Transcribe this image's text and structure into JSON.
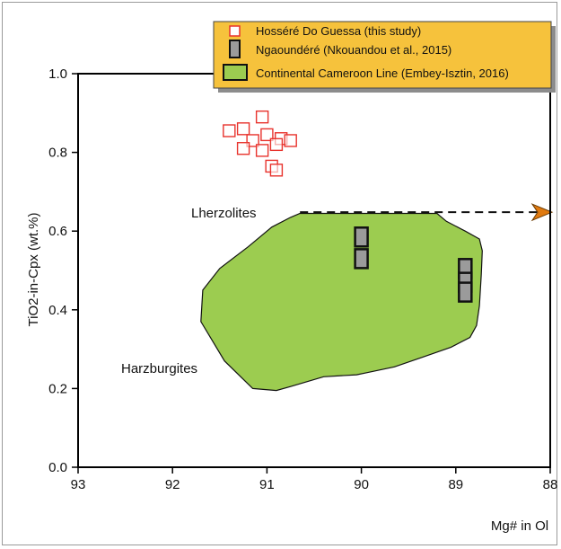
{
  "chart_data": {
    "type": "scatter",
    "xlabel": "Mg# in Ol",
    "ylabel": "TiO2-in-Cpx (wt.%)",
    "xlim": [
      93,
      88
    ],
    "ylim": [
      0,
      1.0
    ],
    "x_reversed": true,
    "x_ticks": [
      "93",
      "92",
      "91",
      "90",
      "89",
      "88"
    ],
    "x_tick_values": [
      93,
      92,
      91,
      90,
      89,
      88
    ],
    "y_ticks": [
      "0.0",
      "0.2",
      "0.4",
      "0.6",
      "0.8",
      "1.0"
    ],
    "y_tick_values": [
      0,
      0.2,
      0.4,
      0.6,
      0.8,
      1.0
    ],
    "grid": false,
    "legend_position": "top-right",
    "legend": [
      {
        "label": "Hosséré Do Guessa (this study)",
        "marker": "open-square",
        "color": "#e8332d"
      },
      {
        "label": "Ngaoundéré (Nkouandou et al., 2015)",
        "marker": "gray-bar",
        "color": "#9b9b9b"
      },
      {
        "label": "Continental Cameroon Line (Embey-Isztin, 2016)",
        "marker": "green-field",
        "color": "#9ccc50"
      }
    ],
    "legend_bg": "#f6c23c",
    "annotations": [
      "Lherzolites",
      "Harzburgites"
    ],
    "series": [
      {
        "name": "Hosséré Do Guessa (this study)",
        "marker": "open-square",
        "color": "#e8332d",
        "points": [
          {
            "x": 91.05,
            "y": 0.89
          },
          {
            "x": 91.4,
            "y": 0.855
          },
          {
            "x": 91.25,
            "y": 0.86
          },
          {
            "x": 91.0,
            "y": 0.845
          },
          {
            "x": 90.85,
            "y": 0.835
          },
          {
            "x": 90.75,
            "y": 0.83
          },
          {
            "x": 91.15,
            "y": 0.83
          },
          {
            "x": 90.9,
            "y": 0.82
          },
          {
            "x": 91.25,
            "y": 0.81
          },
          {
            "x": 91.05,
            "y": 0.805
          },
          {
            "x": 90.95,
            "y": 0.765
          },
          {
            "x": 90.9,
            "y": 0.755
          }
        ]
      },
      {
        "name": "Ngaoundéré (Nkouandou et al., 2015)",
        "marker": "gray-bar",
        "color": "#9b9b9b",
        "points": [
          {
            "x": 90.0,
            "y": 0.585
          },
          {
            "x": 90.0,
            "y": 0.53
          },
          {
            "x": 88.9,
            "y": 0.505
          },
          {
            "x": 88.9,
            "y": 0.47
          },
          {
            "x": 88.9,
            "y": 0.445
          }
        ]
      },
      {
        "name": "Continental Cameroon Line (Embey-Isztin, 2016)",
        "type": "area",
        "color": "#9ccc50",
        "outline": [
          [
            90.65,
            0.645
          ],
          [
            89.2,
            0.645
          ],
          [
            89.1,
            0.625
          ],
          [
            88.9,
            0.6
          ],
          [
            88.75,
            0.58
          ],
          [
            88.72,
            0.55
          ],
          [
            88.73,
            0.49
          ],
          [
            88.75,
            0.41
          ],
          [
            88.78,
            0.36
          ],
          [
            88.85,
            0.33
          ],
          [
            89.05,
            0.305
          ],
          [
            89.35,
            0.28
          ],
          [
            89.65,
            0.255
          ],
          [
            89.95,
            0.24
          ],
          [
            90.05,
            0.235
          ],
          [
            90.4,
            0.23
          ],
          [
            90.75,
            0.205
          ],
          [
            90.9,
            0.195
          ],
          [
            91.15,
            0.2
          ],
          [
            91.45,
            0.27
          ],
          [
            91.7,
            0.37
          ],
          [
            91.68,
            0.45
          ],
          [
            91.5,
            0.505
          ],
          [
            91.2,
            0.56
          ],
          [
            90.95,
            0.61
          ],
          [
            90.75,
            0.635
          ]
        ]
      }
    ],
    "arrow": {
      "from": [
        90.65,
        0.648
      ],
      "to": [
        88.0,
        0.648
      ],
      "style": "dashed",
      "head_color": "#e07a10"
    }
  }
}
